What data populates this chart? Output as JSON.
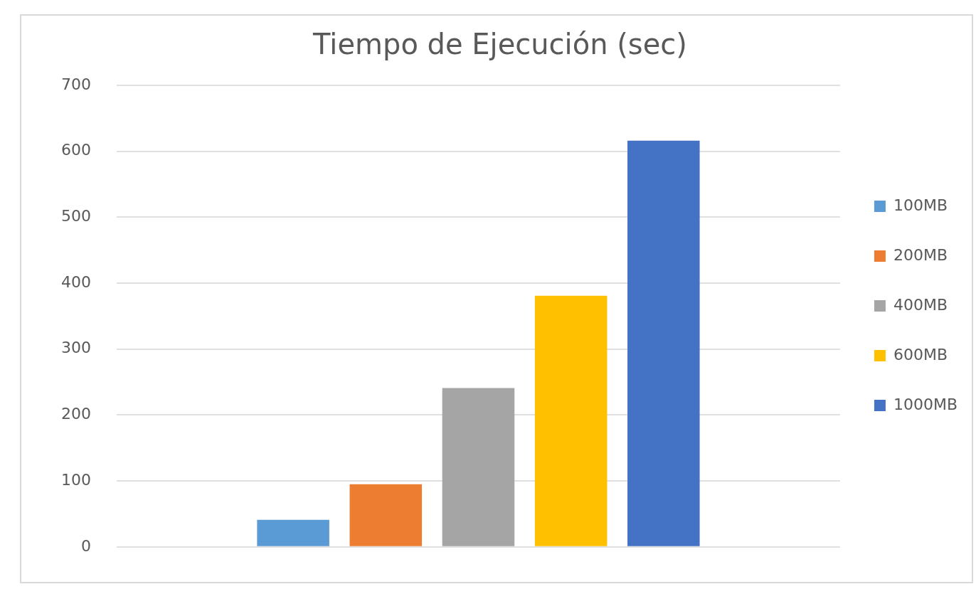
{
  "chart_data": {
    "type": "bar",
    "title": "Tiempo de Ejecución (sec)",
    "categories": [
      null
    ],
    "series": [
      {
        "name": "100MB",
        "color": "#5b9bd5",
        "values": [
          41
        ]
      },
      {
        "name": "200MB",
        "color": "#ed7d31",
        "values": [
          95
        ]
      },
      {
        "name": "400MB",
        "color": "#a5a5a5",
        "values": [
          241
        ]
      },
      {
        "name": "600MB",
        "color": "#ffc000",
        "values": [
          381
        ]
      },
      {
        "name": "1000MB",
        "color": "#4472c4",
        "values": [
          616
        ]
      }
    ],
    "ylim": [
      0,
      700
    ],
    "yticks": [
      0,
      100,
      200,
      300,
      400,
      500,
      600,
      700
    ],
    "grid": "y",
    "legend": "right"
  }
}
